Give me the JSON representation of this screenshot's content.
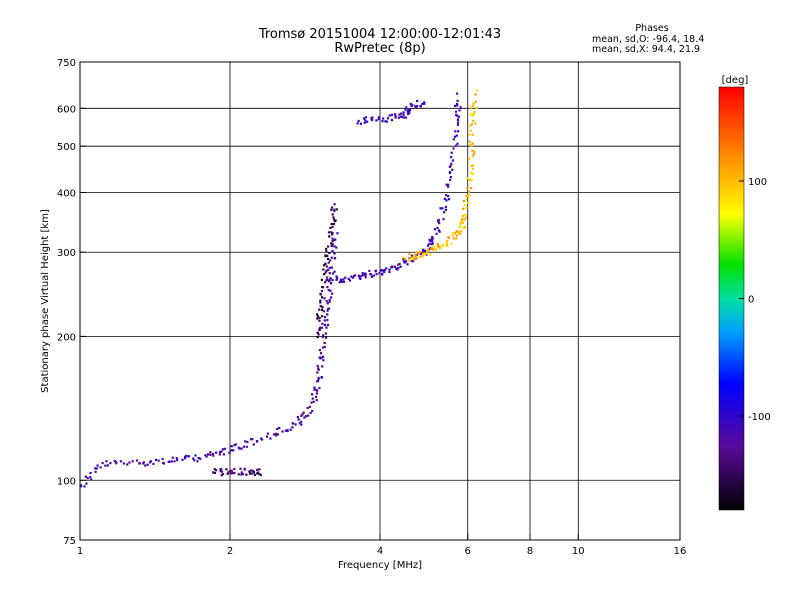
{
  "title": "Tromsø 20151004 12:00:00-12:01:43",
  "subtitle": "RwPretec (8p)",
  "phases_box": {
    "heading": "Phases",
    "line_o": "mean, sd,O: -96.4, 18.4",
    "line_x": "mean, sd,X:  94.4, 21.9"
  },
  "colorbar": {
    "label": "[deg]",
    "range": [
      -180,
      180
    ],
    "ticks": [
      {
        "value": 100,
        "label": "100"
      },
      {
        "value": 0,
        "label": "0"
      },
      {
        "value": -100,
        "label": "-100"
      }
    ]
  },
  "chart_data": {
    "type": "scatter",
    "title": "Tromsø 20151004 12:00:00-12:01:43",
    "subtitle": "RwPretec (8p)",
    "xlabel": "Frequency [MHz]",
    "ylabel": "Stationary phase Virtual Height [km]",
    "x_scale": "log",
    "y_scale": "log",
    "xlim": [
      1,
      16
    ],
    "ylim": [
      75,
      750
    ],
    "grid": true,
    "x_ticks": [
      {
        "value": 1,
        "label": "1"
      },
      {
        "value": 2,
        "label": "2"
      },
      {
        "value": 4,
        "label": "4"
      },
      {
        "value": 6,
        "label": "6"
      },
      {
        "value": 8,
        "label": "8"
      },
      {
        "value": 10,
        "label": "10"
      },
      {
        "value": 16,
        "label": "16"
      }
    ],
    "x_gridlines": [
      2,
      4,
      6,
      8,
      10
    ],
    "y_ticks": [
      {
        "value": 75,
        "label": "75"
      },
      {
        "value": 100,
        "label": "100"
      },
      {
        "value": 200,
        "label": "200"
      },
      {
        "value": 300,
        "label": "300"
      },
      {
        "value": 400,
        "label": "400"
      },
      {
        "value": 500,
        "label": "500"
      },
      {
        "value": 600,
        "label": "600"
      },
      {
        "value": 750,
        "label": "750"
      }
    ],
    "y_gridlines": [
      100,
      200,
      300,
      400,
      500,
      600
    ],
    "color_encoding": "phase [deg], -180 to 180",
    "traces": [
      {
        "desc": "E region low trace",
        "phase": -120,
        "points": [
          [
            1.0,
            97
          ],
          [
            1.1,
            108
          ],
          [
            1.3,
            109
          ],
          [
            1.5,
            110
          ],
          [
            1.7,
            111
          ],
          [
            1.9,
            114
          ],
          [
            2.1,
            118
          ],
          [
            2.4,
            124
          ],
          [
            2.7,
            130
          ],
          [
            2.9,
            140
          ],
          [
            3.0,
            158
          ],
          [
            3.05,
            180
          ],
          [
            3.1,
            210
          ],
          [
            3.15,
            240
          ],
          [
            3.2,
            280
          ],
          [
            3.25,
            330
          ]
        ]
      },
      {
        "desc": "Es / sporadic layer",
        "phase": -140,
        "points": [
          [
            1.85,
            104
          ],
          [
            2.0,
            104
          ],
          [
            2.2,
            104
          ],
          [
            2.3,
            104
          ]
        ]
      },
      {
        "desc": "F1 cusp rising",
        "phase": -150,
        "points": [
          [
            3.0,
            200
          ],
          [
            3.05,
            230
          ],
          [
            3.1,
            265
          ],
          [
            3.15,
            300
          ],
          [
            3.2,
            340
          ],
          [
            3.25,
            380
          ]
        ]
      },
      {
        "desc": "F layer flat trace",
        "phase": -110,
        "points": [
          [
            3.2,
            262
          ],
          [
            3.5,
            265
          ],
          [
            3.8,
            270
          ],
          [
            4.1,
            275
          ],
          [
            4.4,
            283
          ],
          [
            4.7,
            292
          ],
          [
            5.0,
            305
          ],
          [
            5.2,
            330
          ],
          [
            5.4,
            380
          ],
          [
            5.6,
            460
          ],
          [
            5.7,
            560
          ],
          [
            5.75,
            640
          ]
        ]
      },
      {
        "desc": "X mode trace",
        "phase": 100,
        "points": [
          [
            4.5,
            292
          ],
          [
            4.8,
            296
          ],
          [
            5.1,
            303
          ],
          [
            5.4,
            312
          ],
          [
            5.7,
            328
          ],
          [
            5.9,
            350
          ],
          [
            6.0,
            400
          ],
          [
            6.1,
            470
          ],
          [
            6.15,
            560
          ],
          [
            6.2,
            650
          ]
        ]
      },
      {
        "desc": "Upper spread segment",
        "phase": -105,
        "points": [
          [
            3.6,
            565
          ],
          [
            4.0,
            570
          ],
          [
            4.4,
            575
          ],
          [
            4.6,
            600
          ],
          [
            4.9,
            620
          ]
        ]
      }
    ]
  }
}
